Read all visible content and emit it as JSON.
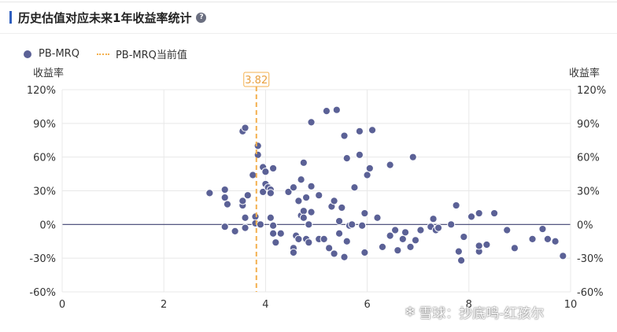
{
  "header": {
    "title": "历史估值对应未来1年收益率统计",
    "help_glyph": "?"
  },
  "legend": {
    "series_label": "PB-MRQ",
    "current_label": "PB-MRQ当前值"
  },
  "watermark": {
    "logo": "❄",
    "text": "雪球：抄底鸣-红孩尔"
  },
  "colors": {
    "points": "#5b6196",
    "current_line": "#f4b04f",
    "zero_line": "#3d4170"
  },
  "chart_data": {
    "type": "scatter",
    "title": "",
    "xlabel": "",
    "ylabel_left": "收益率",
    "ylabel_right": "收益率",
    "xlim": [
      0,
      10
    ],
    "ylim": [
      -60,
      120
    ],
    "x_ticks": [
      "0",
      "2",
      "4",
      "6",
      "8",
      "10"
    ],
    "y_ticks": [
      "120%",
      "90%",
      "60%",
      "30%",
      "0%",
      "-30%",
      "-60%"
    ],
    "current_value": 3.82,
    "current_value_label": "3.82",
    "grid": true,
    "legend_position": "top-left",
    "series": [
      {
        "name": "PB-MRQ",
        "points": [
          [
            2.9,
            28
          ],
          [
            3.2,
            31
          ],
          [
            3.2,
            24
          ],
          [
            3.2,
            -2
          ],
          [
            3.25,
            18
          ],
          [
            3.4,
            -6
          ],
          [
            3.55,
            17
          ],
          [
            3.55,
            21
          ],
          [
            3.6,
            6
          ],
          [
            3.6,
            -3
          ],
          [
            3.65,
            26
          ],
          [
            3.55,
            83
          ],
          [
            3.6,
            86
          ],
          [
            3.75,
            44
          ],
          [
            3.85,
            70
          ],
          [
            3.85,
            62
          ],
          [
            3.8,
            7
          ],
          [
            3.8,
            1
          ],
          [
            3.9,
            0
          ],
          [
            3.95,
            51
          ],
          [
            3.95,
            29
          ],
          [
            4.0,
            47
          ],
          [
            4.0,
            36
          ],
          [
            4.05,
            33
          ],
          [
            4.1,
            31
          ],
          [
            4.1,
            28
          ],
          [
            4.1,
            6
          ],
          [
            4.15,
            50
          ],
          [
            4.15,
            -1
          ],
          [
            4.15,
            -8
          ],
          [
            4.2,
            -16
          ],
          [
            4.3,
            -8
          ],
          [
            4.45,
            29
          ],
          [
            4.55,
            -21
          ],
          [
            4.55,
            -25
          ],
          [
            4.55,
            33
          ],
          [
            4.6,
            -10
          ],
          [
            4.65,
            -13
          ],
          [
            4.65,
            21
          ],
          [
            4.7,
            40
          ],
          [
            4.7,
            8
          ],
          [
            4.75,
            55
          ],
          [
            4.75,
            12
          ],
          [
            4.75,
            6
          ],
          [
            4.8,
            -13
          ],
          [
            4.8,
            24
          ],
          [
            4.85,
            -16
          ],
          [
            4.85,
            0
          ],
          [
            4.9,
            11
          ],
          [
            4.9,
            34
          ],
          [
            4.9,
            91
          ],
          [
            5.05,
            26
          ],
          [
            5.05,
            -13
          ],
          [
            5.15,
            -13
          ],
          [
            5.2,
            101
          ],
          [
            5.25,
            -21
          ],
          [
            5.3,
            16
          ],
          [
            5.35,
            -26
          ],
          [
            5.35,
            21
          ],
          [
            5.4,
            102
          ],
          [
            5.45,
            3
          ],
          [
            5.45,
            -8
          ],
          [
            5.5,
            15
          ],
          [
            5.55,
            -29
          ],
          [
            5.55,
            79
          ],
          [
            5.6,
            -15
          ],
          [
            5.6,
            59
          ],
          [
            5.65,
            -1
          ],
          [
            5.7,
            0
          ],
          [
            5.75,
            33
          ],
          [
            5.85,
            62
          ],
          [
            5.85,
            83
          ],
          [
            5.9,
            -1
          ],
          [
            5.95,
            -25
          ],
          [
            5.95,
            10
          ],
          [
            6.0,
            44
          ],
          [
            6.05,
            50
          ],
          [
            6.1,
            84
          ],
          [
            6.2,
            6
          ],
          [
            6.3,
            -20
          ],
          [
            6.45,
            53
          ],
          [
            6.45,
            -10
          ],
          [
            6.55,
            -5
          ],
          [
            6.6,
            -23
          ],
          [
            6.7,
            -13
          ],
          [
            6.75,
            -7
          ],
          [
            6.85,
            -20
          ],
          [
            6.9,
            60
          ],
          [
            6.95,
            -14
          ],
          [
            7.05,
            -5
          ],
          [
            7.25,
            -2
          ],
          [
            7.3,
            5
          ],
          [
            7.35,
            -5
          ],
          [
            7.4,
            -3
          ],
          [
            7.65,
            0
          ],
          [
            7.75,
            17
          ],
          [
            7.8,
            -24
          ],
          [
            7.85,
            -32
          ],
          [
            7.9,
            -11
          ],
          [
            8.05,
            7
          ],
          [
            8.2,
            10
          ],
          [
            8.2,
            -24
          ],
          [
            8.2,
            -19
          ],
          [
            8.35,
            -18
          ],
          [
            8.5,
            10
          ],
          [
            8.75,
            -5
          ],
          [
            8.9,
            -21
          ],
          [
            9.25,
            -13
          ],
          [
            9.45,
            -4
          ],
          [
            9.55,
            -13
          ],
          [
            9.7,
            -15
          ],
          [
            9.85,
            -28
          ]
        ]
      }
    ]
  }
}
